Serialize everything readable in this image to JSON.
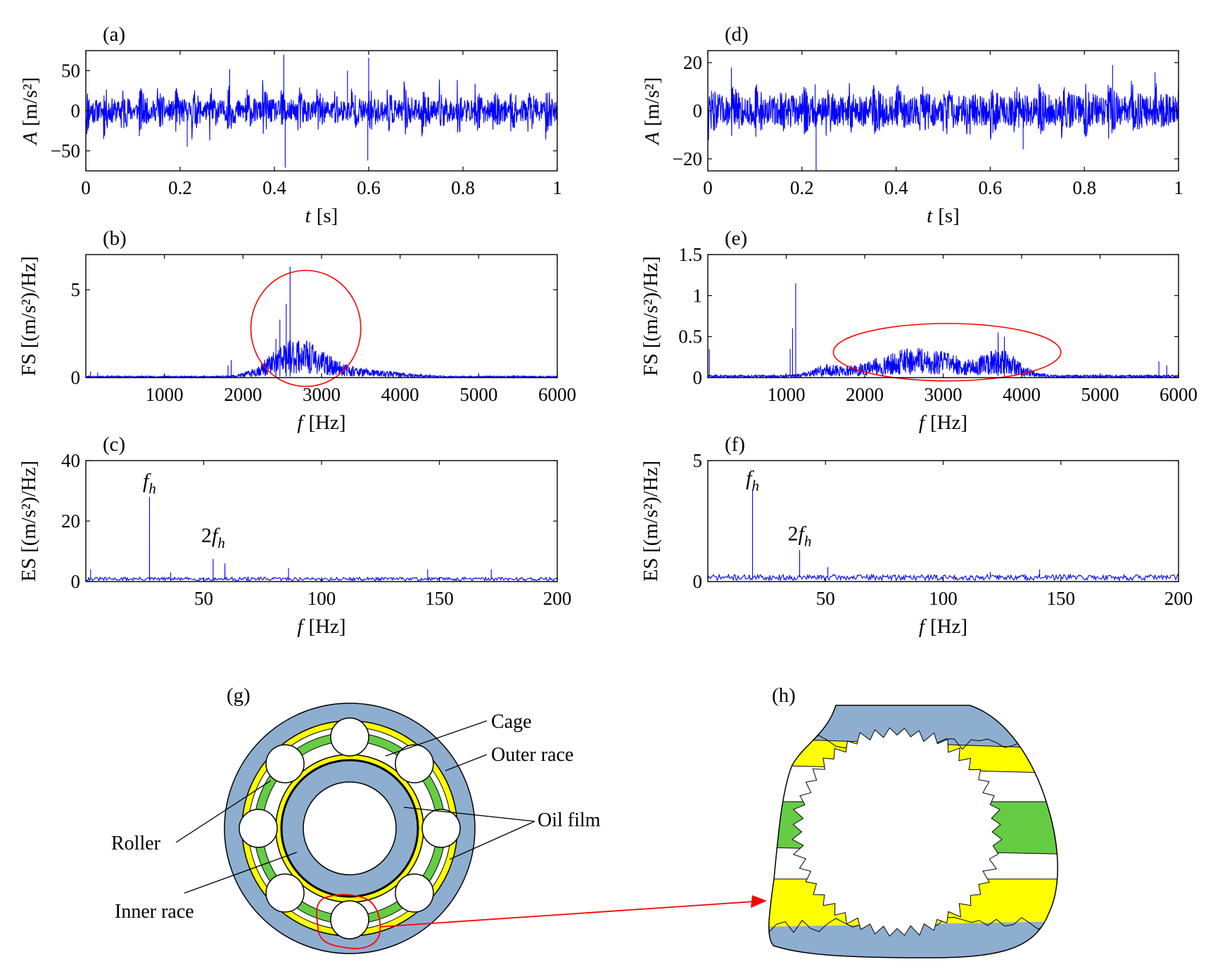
{
  "colors": {
    "signal": "#0000ff",
    "highlight": "#ff0000",
    "race": "#8eaed0",
    "oil_film": "#ffff00",
    "cage": "#66cc44",
    "roller": "#ffffff"
  },
  "chart_data": [
    {
      "panel": "(a)",
      "type": "line",
      "xlabel_var": "t",
      "xlabel_unit": "[s]",
      "ylabel_var": "A",
      "ylabel_unit": "[m/s²]",
      "xlim": [
        0,
        1
      ],
      "ylim": [
        -75,
        75
      ],
      "xticks": [
        0,
        0.2,
        0.4,
        0.6,
        0.8,
        1
      ],
      "xtick_labels": [
        "0",
        "0.2",
        "0.4",
        "0.6",
        "0.8",
        "1"
      ],
      "yticks": [
        -50,
        0,
        50
      ],
      "ytick_labels": [
        "−50",
        "0",
        "50"
      ],
      "gen": {
        "kind": "time",
        "base": 12,
        "amp": 28,
        "period": 0.0375,
        "seed": 11
      },
      "spikes": [
        [
          0.42,
          70
        ],
        [
          0.423,
          -71
        ],
        [
          0.6,
          66
        ],
        [
          0.598,
          -62
        ],
        [
          0.305,
          52
        ],
        [
          0.555,
          50
        ],
        [
          0.215,
          -45
        ]
      ]
    },
    {
      "panel": "(b)",
      "type": "line",
      "xlabel_var": "f",
      "xlabel_unit": "[Hz]",
      "ylabel_text": "FS [(m/s²)/Hz]",
      "xlim": [
        0,
        6000
      ],
      "ylim": [
        0,
        7
      ],
      "xticks": [
        1000,
        2000,
        3000,
        4000,
        5000,
        6000
      ],
      "xtick_labels": [
        "1000",
        "2000",
        "3000",
        "4000",
        "5000",
        "6000"
      ],
      "yticks": [
        0,
        5
      ],
      "ytick_labels": [
        "0",
        "5"
      ],
      "gen": {
        "kind": "fs",
        "seed": 23,
        "floor": 0.06,
        "bumps": [
          [
            2650,
            420,
            1.3
          ],
          [
            3200,
            500,
            0.35
          ],
          [
            3900,
            400,
            0.12
          ]
        ]
      },
      "spikes": [
        [
          2600,
          6.3
        ],
        [
          2550,
          4.2
        ],
        [
          2470,
          3.3
        ],
        [
          2420,
          2.2
        ],
        [
          1850,
          1.0
        ],
        [
          1810,
          0.7
        ],
        [
          60,
          0.35
        ],
        [
          150,
          0.3
        ]
      ],
      "ellipse": {
        "cx": 2800,
        "cy": 2.8,
        "rx": 700,
        "ry": 3.3
      }
    },
    {
      "panel": "(c)",
      "type": "line",
      "xlabel_var": "f",
      "xlabel_unit": "[Hz]",
      "ylabel_text": "ES [(m/s²)/Hz]",
      "xlim": [
        0,
        200
      ],
      "ylim": [
        0,
        40
      ],
      "xticks": [
        50,
        100,
        150,
        200
      ],
      "xtick_labels": [
        "50",
        "100",
        "150",
        "200"
      ],
      "yticks": [
        0,
        20,
        40
      ],
      "ytick_labels": [
        "0",
        "20",
        "40"
      ],
      "gen": {
        "kind": "es",
        "seed": 31,
        "floor": 0.9
      },
      "spikes": [
        [
          27,
          28
        ],
        [
          54,
          7.5
        ],
        [
          59,
          6
        ],
        [
          86,
          4.5
        ],
        [
          145,
          4
        ],
        [
          172,
          4
        ],
        [
          2,
          4
        ],
        [
          36,
          3
        ]
      ],
      "annotations": [
        {
          "base": "f",
          "sub": "h",
          "x": 27,
          "y": 31
        },
        {
          "base": "2f",
          "sub": "h",
          "x": 54,
          "y": 13
        }
      ]
    },
    {
      "panel": "(d)",
      "type": "line",
      "xlabel_var": "t",
      "xlabel_unit": "[s]",
      "ylabel_var": "A",
      "ylabel_unit": "[m/s²]",
      "xlim": [
        0,
        1
      ],
      "ylim": [
        -25,
        25
      ],
      "xticks": [
        0,
        0.2,
        0.4,
        0.6,
        0.8,
        1
      ],
      "xtick_labels": [
        "0",
        "0.2",
        "0.4",
        "0.6",
        "0.8",
        "1"
      ],
      "yticks": [
        -20,
        0,
        20
      ],
      "ytick_labels": [
        "−20",
        "0",
        "20"
      ],
      "gen": {
        "kind": "time",
        "base": 6,
        "amp": 7,
        "period": 0.05,
        "seed": 47
      },
      "spikes": [
        [
          0.23,
          -25
        ],
        [
          0.228,
          11
        ],
        [
          0.67,
          -16
        ],
        [
          0.86,
          19
        ],
        [
          0.05,
          18
        ],
        [
          0.95,
          16
        ]
      ]
    },
    {
      "panel": "(e)",
      "type": "line",
      "xlabel_var": "f",
      "xlabel_unit": "[Hz]",
      "ylabel_text": "FS [(m/s²)/Hz]",
      "xlim": [
        0,
        6000
      ],
      "ylim": [
        0,
        1.5
      ],
      "xticks": [
        1000,
        2000,
        3000,
        4000,
        5000,
        6000
      ],
      "xtick_labels": [
        "1000",
        "2000",
        "3000",
        "4000",
        "5000",
        "6000"
      ],
      "yticks": [
        0,
        0.5,
        1,
        1.5
      ],
      "ytick_labels": [
        "0",
        "0.5",
        "1",
        "1.5"
      ],
      "gen": {
        "kind": "fs",
        "seed": 59,
        "floor": 0.02,
        "bumps": [
          [
            2700,
            800,
            0.22
          ],
          [
            3750,
            300,
            0.16
          ],
          [
            1500,
            250,
            0.06
          ]
        ]
      },
      "spikes": [
        [
          1120,
          1.15
        ],
        [
          1080,
          0.6
        ],
        [
          1050,
          0.35
        ],
        [
          3700,
          0.55
        ],
        [
          3780,
          0.5
        ],
        [
          20,
          0.35
        ],
        [
          5750,
          0.2
        ],
        [
          5850,
          0.15
        ]
      ],
      "ellipse": {
        "cx": 3050,
        "cy": 0.31,
        "rx": 1450,
        "ry": 0.35
      }
    },
    {
      "panel": "(f)",
      "type": "line",
      "xlabel_var": "f",
      "xlabel_unit": "[Hz]",
      "ylabel_text": "ES [(m/s²)/Hz]",
      "xlim": [
        0,
        200
      ],
      "ylim": [
        0,
        5
      ],
      "xticks": [
        50,
        100,
        150,
        200
      ],
      "xtick_labels": [
        "50",
        "100",
        "150",
        "200"
      ],
      "yticks": [
        0,
        5
      ],
      "ytick_labels": [
        "0",
        "5"
      ],
      "gen": {
        "kind": "es",
        "seed": 71,
        "floor": 0.18
      },
      "spikes": [
        [
          19,
          3.8
        ],
        [
          39,
          1.3
        ],
        [
          51,
          0.6
        ],
        [
          141,
          0.5
        ],
        [
          120,
          0.4
        ]
      ],
      "annotations": [
        {
          "base": "f",
          "sub": "h",
          "x": 19,
          "y": 4.0
        },
        {
          "base": "2f",
          "sub": "h",
          "x": 39,
          "y": 1.7
        }
      ]
    }
  ],
  "diagram": {
    "g_label": "(g)",
    "h_label": "(h)",
    "labels": {
      "cage": "Cage",
      "outer_race": "Outer race",
      "oil_film": "Oil film",
      "roller": "Roller",
      "inner_race": "Inner race"
    }
  }
}
